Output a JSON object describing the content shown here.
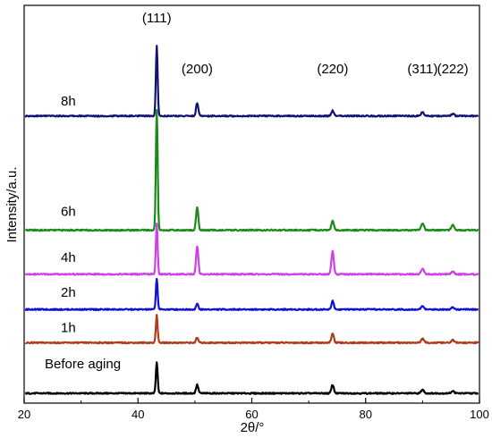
{
  "chart_data": {
    "type": "line",
    "title": "",
    "xlabel": "2θ/°",
    "ylabel": "Intensity/a.u.",
    "xlim": [
      20,
      100
    ],
    "xticks": [
      "20",
      "40",
      "60",
      "80",
      "100"
    ],
    "yticks_shown": false,
    "grid": false,
    "legend": "none",
    "peaks": [
      {
        "label": "(111)",
        "x": 43.3
      },
      {
        "label": "(200)",
        "x": 50.4
      },
      {
        "label": "(220)",
        "x": 74.2
      },
      {
        "label": "(311)",
        "x": 90.0
      },
      {
        "label": "(222)",
        "x": 95.3
      }
    ],
    "series": [
      {
        "label": "Before aging",
        "color": "#000000",
        "baseline": 0.0,
        "peak_heights": [
          0.95,
          0.26,
          0.26,
          0.11,
          0.07
        ]
      },
      {
        "label": "1h",
        "color": "#b03a1a",
        "baseline": 1.55,
        "peak_heights": [
          0.85,
          0.15,
          0.28,
          0.12,
          0.08
        ]
      },
      {
        "label": "2h",
        "color": "#1010d8",
        "baseline": 2.57,
        "peak_heights": [
          0.95,
          0.17,
          0.26,
          0.1,
          0.07
        ]
      },
      {
        "label": "4h",
        "color": "#d040e8",
        "baseline": 3.65,
        "peak_heights": [
          1.55,
          0.85,
          0.7,
          0.17,
          0.08
        ]
      },
      {
        "label": "6h",
        "color": "#1a8a1a",
        "baseline": 5.0,
        "peak_heights": [
          3.7,
          0.7,
          0.3,
          0.2,
          0.18
        ]
      },
      {
        "label": "8h",
        "color": "#121270",
        "baseline": 8.5,
        "peak_heights": [
          2.15,
          0.4,
          0.17,
          0.12,
          0.07
        ]
      }
    ]
  }
}
